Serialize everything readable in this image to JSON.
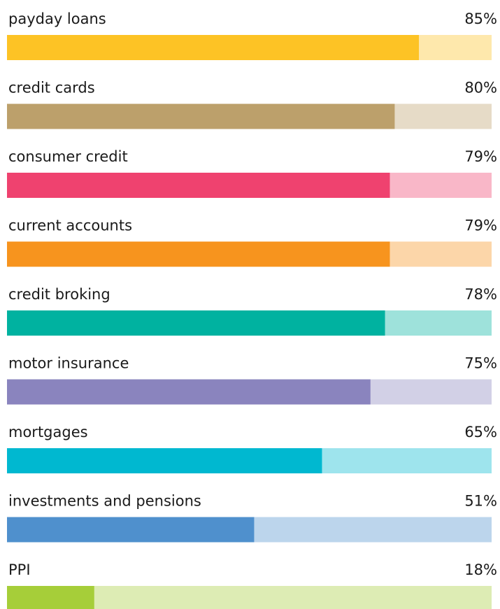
{
  "chart_data": {
    "type": "bar",
    "orientation": "horizontal",
    "categories": [
      "payday loans",
      "credit cards",
      "consumer credit",
      "current accounts",
      "credit broking",
      "motor insurance",
      "mortgages",
      "investments and pensions",
      "PPI"
    ],
    "values": [
      85,
      80,
      79,
      79,
      78,
      75,
      65,
      51,
      18
    ],
    "value_labels": [
      "85%",
      "80%",
      "79%",
      "79%",
      "78%",
      "75%",
      "65%",
      "51%",
      "18%"
    ],
    "colors": [
      "#fdc325",
      "#bca06b",
      "#ef426f",
      "#f7941e",
      "#00b2a0",
      "#8a84be",
      "#00b8d0",
      "#4f90cd",
      "#a6ce39"
    ],
    "xlim": [
      0,
      100
    ]
  }
}
